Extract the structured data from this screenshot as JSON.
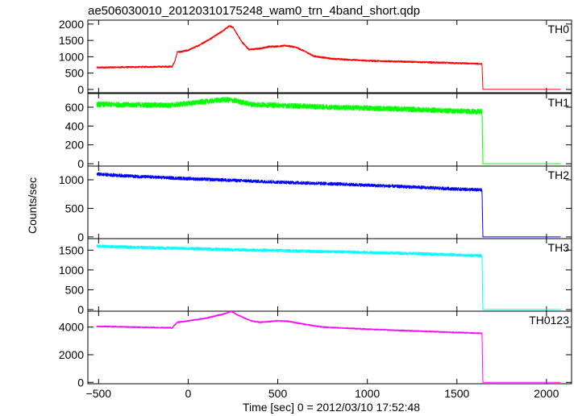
{
  "chart_data": {
    "type": "line",
    "title": "ae506030010_20120310175248_wam0_trn_4band_short.qdp",
    "xlabel": "Time [sec] 0 = 2012/03/10 17:52:48",
    "ylabel": "Counts/sec",
    "xlim": [
      -560,
      2140
    ],
    "x_ticks": [
      -500,
      0,
      500,
      1000,
      1500,
      2000
    ],
    "x_tick_labels": [
      "−500",
      "0",
      "500",
      "1000",
      "1500",
      "2000"
    ],
    "grid": false,
    "series": [
      {
        "name": "TH0",
        "color": "#ff0000",
        "noise": 25,
        "ylim": [
          -100,
          2120
        ],
        "y_ticks": [
          0,
          500,
          1000,
          1500,
          2000
        ],
        "y_tick_labels": [
          "0",
          "500",
          "1000",
          "1500",
          "2000"
        ],
        "x": [
          -510,
          -90,
          -75,
          -60,
          -40,
          0,
          60,
          130,
          190,
          230,
          250,
          300,
          340,
          400,
          450,
          500,
          550,
          600,
          650,
          700,
          750,
          800,
          1000,
          1200,
          1400,
          1600,
          1640,
          1645,
          2080
        ],
        "y": [
          670,
          700,
          850,
          1150,
          1150,
          1200,
          1350,
          1570,
          1780,
          1940,
          1900,
          1450,
          1220,
          1250,
          1310,
          1320,
          1340,
          1290,
          1170,
          1020,
          980,
          940,
          880,
          850,
          820,
          790,
          780,
          0,
          0
        ]
      },
      {
        "name": "TH1",
        "color": "#00ff00",
        "noise": 28,
        "ylim": [
          -25,
          745
        ],
        "y_ticks": [
          0,
          200,
          400,
          600
        ],
        "y_tick_labels": [
          "0",
          "200",
          "400",
          "600"
        ],
        "x": [
          -510,
          -100,
          0,
          100,
          200,
          260,
          350,
          500,
          800,
          1200,
          1640,
          1645,
          2080
        ],
        "y": [
          630,
          620,
          640,
          660,
          680,
          670,
          630,
          620,
          600,
          580,
          550,
          0,
          0
        ]
      },
      {
        "name": "TH2",
        "color": "#0000ff",
        "noise": 28,
        "ylim": [
          -30,
          1240
        ],
        "y_ticks": [
          0,
          500,
          1000
        ],
        "y_tick_labels": [
          "0",
          "500",
          "1000"
        ],
        "x": [
          -510,
          -300,
          0,
          250,
          500,
          800,
          1200,
          1640,
          1645,
          2080
        ],
        "y": [
          1100,
          1060,
          1020,
          990,
          960,
          930,
          880,
          820,
          0,
          0
        ]
      },
      {
        "name": "TH3",
        "color": "#00ffff",
        "noise": 38,
        "ylim": [
          -40,
          1790
        ],
        "y_ticks": [
          0,
          500,
          1000,
          1500
        ],
        "y_tick_labels": [
          "0",
          "500",
          "1000",
          "1500"
        ],
        "x": [
          -510,
          -300,
          0,
          250,
          500,
          800,
          1200,
          1640,
          1645,
          2080
        ],
        "y": [
          1600,
          1570,
          1540,
          1510,
          1490,
          1460,
          1420,
          1360,
          0,
          0
        ]
      },
      {
        "name": "TH0123",
        "color": "#ff00ff",
        "noise": 45,
        "ylim": [
          -100,
          5150
        ],
        "y_ticks": [
          0,
          2000,
          4000
        ],
        "y_tick_labels": [
          "0",
          "2000",
          "4000"
        ],
        "x": [
          -510,
          -90,
          -60,
          0,
          100,
          200,
          240,
          280,
          350,
          400,
          500,
          560,
          650,
          750,
          1000,
          1300,
          1640,
          1645,
          2080
        ],
        "y": [
          4050,
          3950,
          4350,
          4450,
          4650,
          4950,
          5150,
          4850,
          4450,
          4350,
          4450,
          4420,
          4200,
          4000,
          3850,
          3700,
          3550,
          0,
          0
        ]
      }
    ]
  }
}
